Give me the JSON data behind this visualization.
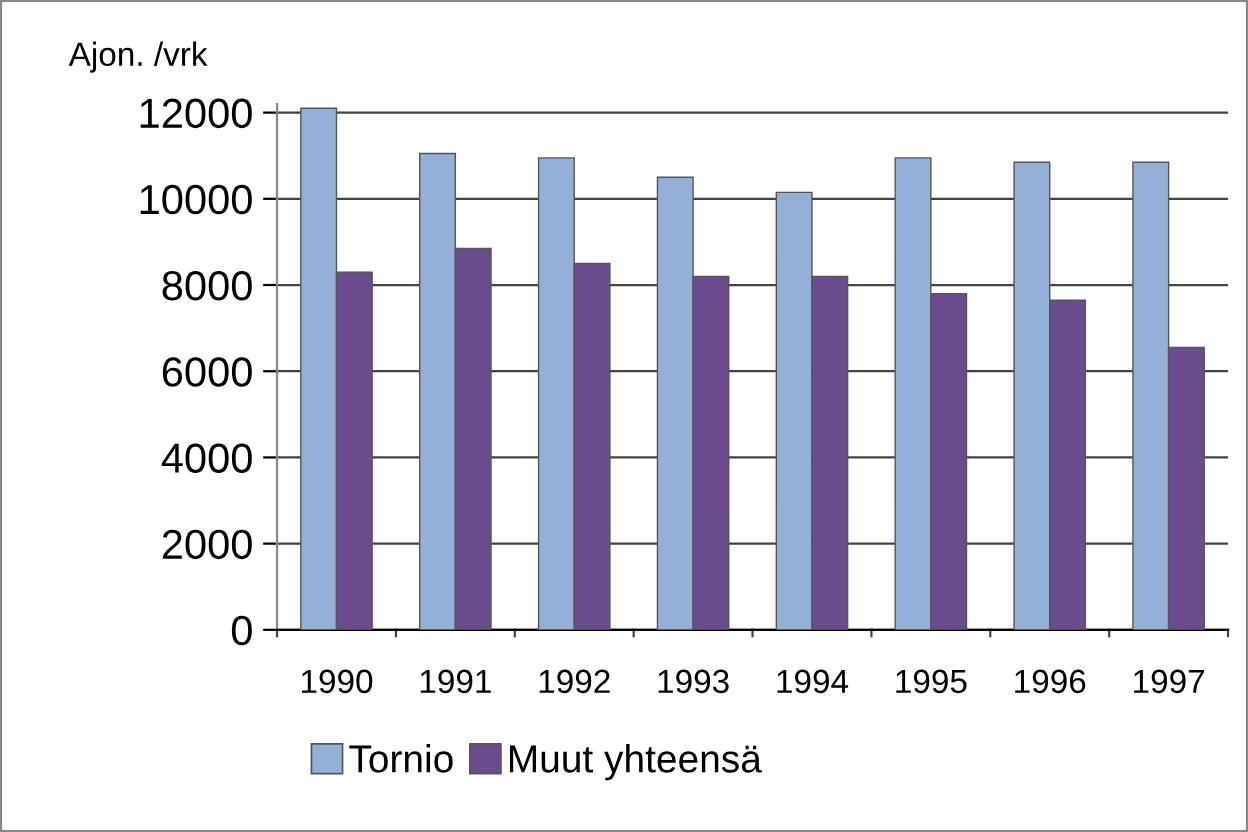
{
  "chart_data": {
    "type": "bar",
    "ylabel": "Ajon. /vrk",
    "categories": [
      "1990",
      "1991",
      "1992",
      "1993",
      "1994",
      "1995",
      "1996",
      "1997"
    ],
    "series": [
      {
        "name": "Tornio",
        "color": "#94b0d8",
        "values": [
          12100,
          11050,
          10950,
          10500,
          10150,
          10950,
          10850,
          10850
        ]
      },
      {
        "name": "Muut yhteensä",
        "color": "#6a4c8e",
        "values": [
          8300,
          8850,
          8500,
          8200,
          8200,
          7800,
          7650,
          6550
        ]
      }
    ],
    "ylim": [
      0,
      12200
    ],
    "yticks": [
      0,
      2000,
      4000,
      6000,
      8000,
      10000,
      12000
    ],
    "grid": "y",
    "legend": "bottom"
  }
}
